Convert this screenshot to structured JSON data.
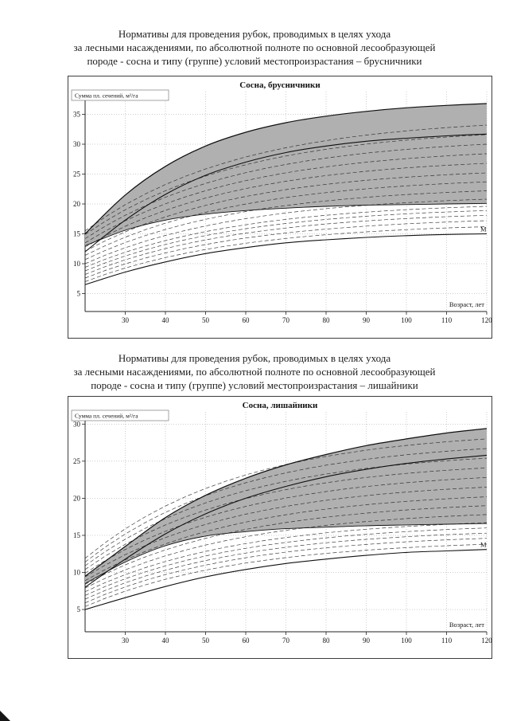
{
  "page": {
    "captions": [
      {
        "lines": [
          "Нормативы для проведения рубок, проводимых в целях ухода",
          "за лесными насаждениями, по абсолютной полноте по основной лесообразующей",
          "породе - сосна и типу (группе) условий местопроизрастания – брусничники"
        ]
      },
      {
        "lines": [
          "Нормативы для проведения рубок, проводимых в целях ухода",
          "за лесными насаждениями, по абсолютной полноте по основной лесообразующей",
          "породе - сосна и типу (группе) условий местопроизрастания – лишайники"
        ]
      }
    ]
  },
  "chart_data": [
    {
      "type": "line",
      "title": "Сосна, брусничники",
      "ylabel": "Сумма пл. сечений, м²/га",
      "xlabel": "Возраст, лет",
      "right_label": "M",
      "xlim": [
        20,
        120
      ],
      "ylim": [
        2,
        38
      ],
      "xticks": [
        30,
        40,
        50,
        60,
        70,
        80,
        90,
        100,
        110,
        120
      ],
      "yticks": [
        5,
        10,
        15,
        20,
        25,
        30,
        35
      ],
      "grid": true,
      "band_color": "#b0b0b0",
      "x": [
        20,
        30,
        40,
        50,
        60,
        70,
        80,
        90,
        100,
        110,
        120
      ],
      "band_upper": [
        15.0,
        21.5,
        26.3,
        29.7,
        32.0,
        33.6,
        34.7,
        35.5,
        36.1,
        36.5,
        36.8
      ],
      "band_lower": [
        13.0,
        15.6,
        17.3,
        18.3,
        18.9,
        19.3,
        19.6,
        19.8,
        19.9,
        20.0,
        20.1
      ],
      "curves_solid": [
        [
          12.0,
          17.3,
          21.6,
          24.8,
          27.0,
          28.6,
          29.7,
          30.5,
          31.0,
          31.4,
          31.7
        ],
        [
          6.5,
          8.6,
          10.3,
          11.7,
          12.7,
          13.5,
          14.0,
          14.4,
          14.7,
          14.9,
          15.0
        ]
      ],
      "fan_k": 2.6,
      "curves_dashed_endpoints": [
        [
          7.0,
          16.2
        ],
        [
          7.6,
          17.2
        ],
        [
          8.2,
          18.1
        ],
        [
          8.8,
          18.9
        ],
        [
          9.4,
          19.6
        ],
        [
          10.0,
          20.8
        ],
        [
          10.7,
          22.2
        ],
        [
          11.4,
          23.7
        ],
        [
          12.1,
          25.2
        ],
        [
          12.8,
          26.8
        ],
        [
          13.5,
          28.4
        ],
        [
          14.2,
          30.0
        ],
        [
          14.9,
          31.6
        ],
        [
          15.5,
          33.2
        ]
      ]
    },
    {
      "type": "line",
      "title": "Сосна, лишайники",
      "ylabel": "Сумма пл. сечений, м²/га",
      "xlabel": "Возраст, лет",
      "right_label": "M",
      "xlim": [
        20,
        120
      ],
      "ylim": [
        2,
        31
      ],
      "xticks": [
        30,
        40,
        50,
        60,
        70,
        80,
        90,
        100,
        110,
        120
      ],
      "yticks": [
        5,
        10,
        15,
        20,
        25,
        30
      ],
      "grid": true,
      "band_color": "#b0b0b0",
      "x": [
        20,
        30,
        40,
        50,
        60,
        70,
        80,
        90,
        100,
        110,
        120
      ],
      "band_upper": [
        9.5,
        13.5,
        17.4,
        20.4,
        22.7,
        24.5,
        25.9,
        27.1,
        28.0,
        28.8,
        29.4
      ],
      "band_lower": [
        8.5,
        11.4,
        13.6,
        14.9,
        15.5,
        15.9,
        16.1,
        16.3,
        16.4,
        16.5,
        16.6
      ],
      "curves_solid": [
        [
          8.0,
          11.8,
          15.2,
          17.9,
          20.0,
          21.6,
          22.9,
          23.9,
          24.7,
          25.3,
          25.8
        ],
        [
          5.0,
          6.6,
          8.1,
          9.4,
          10.4,
          11.2,
          11.8,
          12.3,
          12.7,
          12.9,
          13.1
        ]
      ],
      "fan_k": 2.6,
      "curves_dashed_endpoints": [
        [
          5.4,
          13.8
        ],
        [
          5.9,
          14.6
        ],
        [
          6.4,
          15.3
        ],
        [
          6.9,
          16.0
        ],
        [
          7.4,
          16.7
        ],
        [
          7.9,
          17.8
        ],
        [
          8.4,
          19.0
        ],
        [
          8.9,
          20.2
        ],
        [
          9.4,
          21.5
        ],
        [
          9.9,
          22.8
        ],
        [
          10.4,
          24.1
        ],
        [
          10.9,
          25.4
        ],
        [
          11.4,
          26.7
        ],
        [
          11.9,
          28.0
        ]
      ]
    }
  ]
}
